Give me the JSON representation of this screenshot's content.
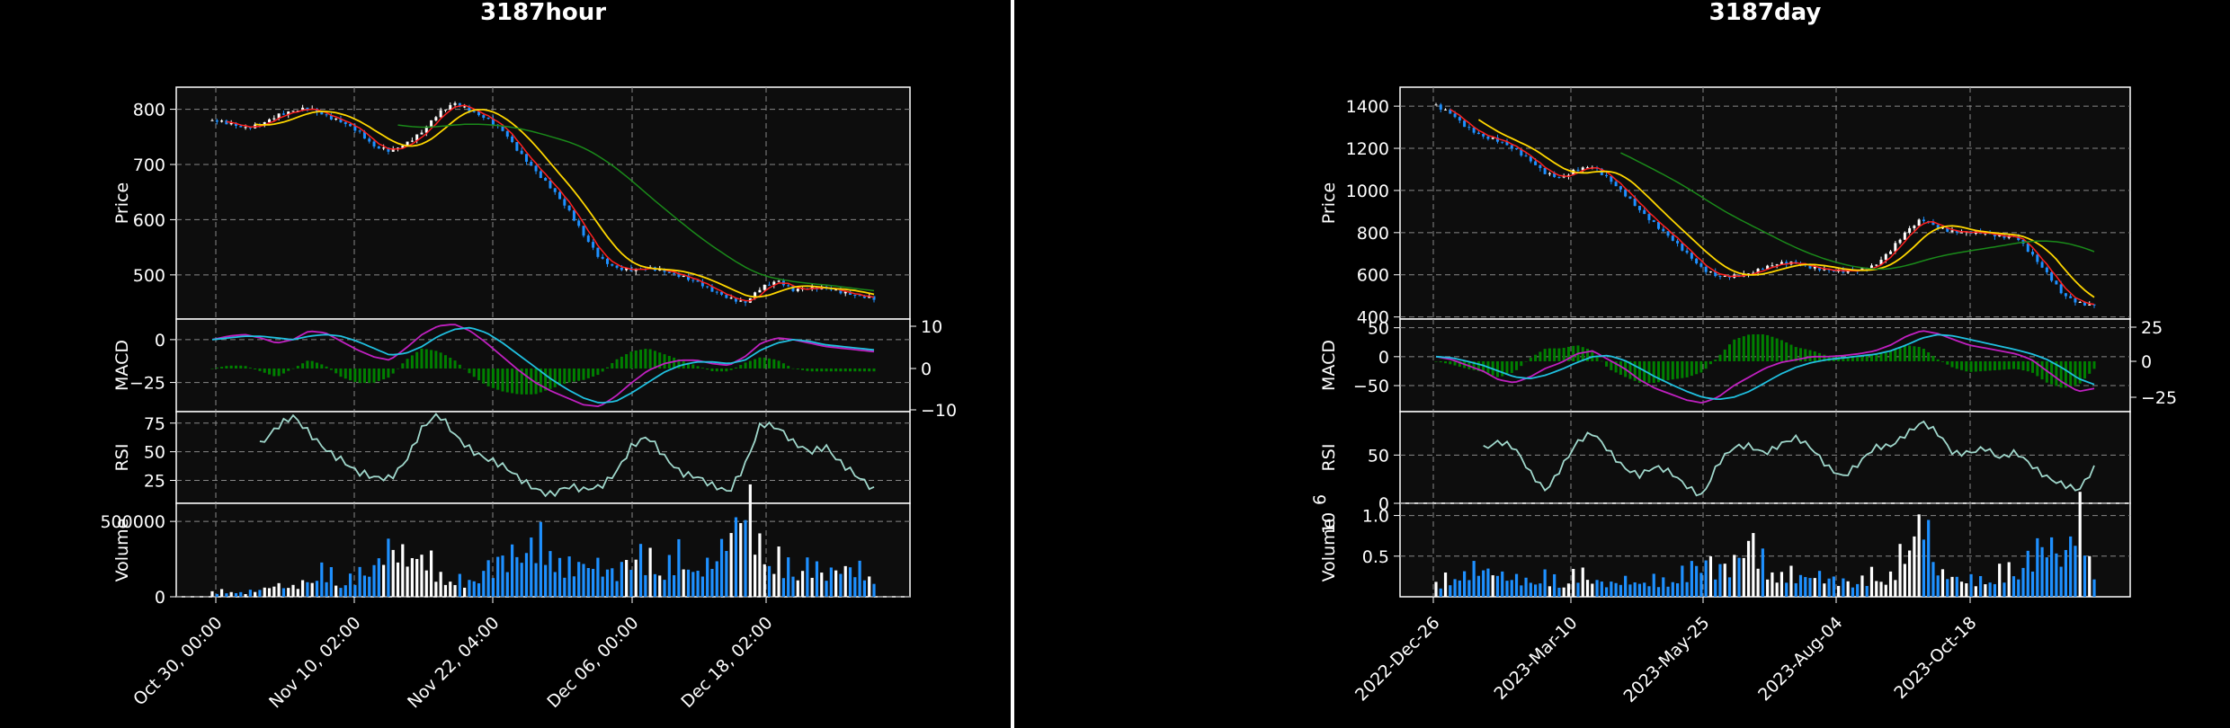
{
  "colors": {
    "background": "#000000",
    "panel": "#0d0d0d",
    "up_candle": "#ffffff",
    "down_candle": "#1e90ff",
    "ma_short": "#ff2020",
    "ma_mid": "#ffd700",
    "ma_long": "#1a8a1a",
    "macd_line": "#c020c0",
    "signal_line": "#20c0e0",
    "histogram": "#008000",
    "rsi_line": "#a0d8cc",
    "volume_up": "#ffffff",
    "volume_down": "#1e90ff",
    "grid": "#888888"
  },
  "chart_data": [
    {
      "title": "3187hour",
      "type": "candlestick",
      "x_tick_labels": [
        "Oct 30, 00:00",
        "Nov 10, 02:00",
        "Nov 22, 04:00",
        "Dec 06, 00:00",
        "Dec 18, 02:00"
      ],
      "price": {
        "ylabel": "Price",
        "ylim": [
          420,
          840
        ],
        "yticks": [
          "500",
          "600",
          "700",
          "800"
        ],
        "close": [
          780,
          772,
          765,
          775,
          790,
          795,
          800,
          790,
          780,
          760,
          730,
          725,
          740,
          760,
          790,
          810,
          800,
          785,
          760,
          720,
          690,
          660,
          620,
          570,
          530,
          515,
          510,
          510,
          505,
          500,
          490,
          470,
          455,
          450,
          480,
          490,
          470,
          475,
          480,
          470,
          460,
          455
        ]
      },
      "macd": {
        "ylabel": "MACD",
        "ylim_left": [
          -42,
          12
        ],
        "yticks_left": [
          "0",
          "−25"
        ],
        "yticks_right": [
          "10",
          "0",
          "−10"
        ],
        "macd": [
          0,
          2,
          3,
          1,
          -2,
          0,
          5,
          4,
          -1,
          -6,
          -10,
          -12,
          -5,
          3,
          8,
          9,
          5,
          -2,
          -10,
          -18,
          -25,
          -30,
          -34,
          -38,
          -39,
          -33,
          -25,
          -18,
          -14,
          -12,
          -12,
          -14,
          -15,
          -10,
          -2,
          1,
          0,
          -2,
          -4,
          -5,
          -6,
          -7
        ],
        "signal": [
          0,
          1,
          2,
          2,
          1,
          0,
          2,
          3,
          2,
          -1,
          -5,
          -9,
          -8,
          -4,
          2,
          6,
          7,
          4,
          -2,
          -9,
          -16,
          -23,
          -29,
          -34,
          -37,
          -36,
          -31,
          -25,
          -19,
          -15,
          -13,
          -13,
          -14,
          -12,
          -6,
          -2,
          0,
          -1,
          -3,
          -4,
          -5,
          -6
        ]
      },
      "rsi": {
        "ylabel": "RSI",
        "ylim": [
          5,
          85
        ],
        "yticks": [
          "25",
          "50",
          "75"
        ],
        "values": [
          50,
          52,
          48,
          60,
          72,
          78,
          65,
          55,
          45,
          30,
          25,
          28,
          45,
          70,
          80,
          65,
          55,
          45,
          35,
          25,
          20,
          15,
          18,
          14,
          20,
          35,
          55,
          60,
          45,
          35,
          30,
          18,
          12,
          40,
          78,
          70,
          55,
          50,
          58,
          40,
          25,
          15
        ]
      },
      "volume": {
        "ylabel": "Volume",
        "ylim": [
          0,
          620000
        ],
        "yticks": [
          "0",
          "500000"
        ],
        "values": [
          30000,
          40000,
          25000,
          50000,
          80000,
          60000,
          120000,
          180000,
          100000,
          140000,
          200000,
          340000,
          250000,
          300000,
          150000,
          120000,
          90000,
          200000,
          250000,
          300000,
          360000,
          330000,
          180000,
          240000,
          200000,
          150000,
          300000,
          250000,
          200000,
          280000,
          160000,
          220000,
          400000,
          650000,
          330000,
          250000,
          180000,
          220000,
          150000,
          200000,
          180000,
          120000
        ]
      }
    },
    {
      "title": "3187day",
      "type": "candlestick",
      "x_tick_labels": [
        "2022-Dec-26",
        "2023-Mar-10",
        "2023-May-25",
        "2023-Aug-04",
        "2023-Oct-18"
      ],
      "price": {
        "ylabel": "Price",
        "ylim": [
          390,
          1490
        ],
        "yticks": [
          "400",
          "600",
          "800",
          "1000",
          "1200",
          "1400"
        ],
        "close": [
          1400,
          1370,
          1300,
          1250,
          1230,
          1200,
          1150,
          1080,
          1050,
          1100,
          1120,
          1060,
          980,
          900,
          840,
          780,
          700,
          620,
          590,
          600,
          610,
          630,
          650,
          660,
          640,
          620,
          610,
          620,
          650,
          720,
          800,
          860,
          830,
          810,
          800,
          790,
          780,
          790,
          700,
          600,
          500,
          470,
          460
        ]
      },
      "macd": {
        "ylabel": "MACD",
        "ylim_left": [
          -95,
          65
        ],
        "yticks_left": [
          "50",
          "0",
          "−50"
        ],
        "yticks_right": [
          "25",
          "0",
          "−25"
        ],
        "macd": [
          0,
          -5,
          -15,
          -25,
          -40,
          -45,
          -35,
          -20,
          -10,
          5,
          10,
          -5,
          -20,
          -40,
          -55,
          -65,
          -75,
          -80,
          -70,
          -50,
          -35,
          -20,
          -10,
          -5,
          0,
          0,
          2,
          5,
          10,
          20,
          35,
          45,
          40,
          30,
          20,
          15,
          10,
          5,
          -5,
          -25,
          -45,
          -60,
          -55
        ],
        "signal": [
          0,
          -2,
          -8,
          -15,
          -25,
          -35,
          -38,
          -32,
          -22,
          -10,
          0,
          2,
          -6,
          -20,
          -35,
          -48,
          -60,
          -70,
          -74,
          -70,
          -60,
          -45,
          -30,
          -18,
          -10,
          -5,
          -2,
          1,
          4,
          10,
          20,
          32,
          38,
          36,
          30,
          24,
          18,
          12,
          5,
          -5,
          -20,
          -38,
          -48
        ]
      },
      "rsi": {
        "ylabel": "RSI",
        "ylim": [
          0,
          95
        ],
        "yticks": [
          "0",
          "50"
        ],
        "values": [
          40,
          35,
          45,
          60,
          65,
          55,
          30,
          15,
          40,
          62,
          70,
          55,
          40,
          30,
          35,
          30,
          20,
          10,
          40,
          55,
          60,
          55,
          62,
          65,
          55,
          40,
          30,
          40,
          55,
          60,
          75,
          85,
          70,
          50,
          55,
          60,
          45,
          50,
          40,
          30,
          20,
          10,
          35
        ]
      },
      "volume": {
        "ylabel": "Volume",
        "exponent_label": "10",
        "exponent_power": "6",
        "ylim": [
          0,
          1.15
        ],
        "yticks": [
          "0.5",
          "1.0"
        ],
        "values": [
          0.15,
          0.25,
          0.3,
          0.35,
          0.28,
          0.22,
          0.2,
          0.25,
          0.18,
          0.3,
          0.22,
          0.15,
          0.2,
          0.18,
          0.2,
          0.22,
          0.3,
          0.5,
          0.35,
          0.4,
          0.8,
          0.35,
          0.3,
          0.25,
          0.28,
          0.22,
          0.2,
          0.18,
          0.3,
          0.25,
          0.6,
          1.05,
          0.3,
          0.25,
          0.2,
          0.22,
          0.3,
          0.35,
          0.5,
          0.7,
          0.45,
          1.0,
          0.3
        ]
      }
    }
  ]
}
